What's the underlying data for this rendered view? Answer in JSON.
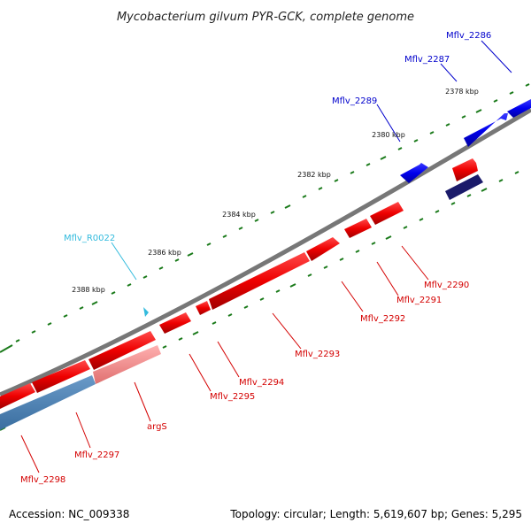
{
  "title": "Mycobacterium gilvum PYR-GCK, complete genome",
  "footer": {
    "accession": "Accession: NC_009338",
    "summary": "Topology: circular; Length: 5,619,607 bp; Genes: 5,295"
  },
  "kbp_labels": [
    "2378 kbp",
    "2380 kbp",
    "2382 kbp",
    "2384 kbp",
    "2386 kbp",
    "2388 kbp"
  ],
  "genes": {
    "mflv_2286": "Mflv_2286",
    "mflv_2287": "Mflv_2287",
    "mflv_2289": "Mflv_2289",
    "mflv_r0022": "Mflv_R0022",
    "mflv_2290": "Mflv_2290",
    "mflv_2291": "Mflv_2291",
    "mflv_2292": "Mflv_2292",
    "mflv_2293": "Mflv_2293",
    "mflv_2294": "Mflv_2294",
    "mflv_2295": "Mflv_2295",
    "args": "argS",
    "mflv_2297": "Mflv_2297",
    "mflv_2298": "Mflv_2298"
  },
  "colors": {
    "forward_gene": "#0000ee",
    "reverse_gene": "#ee0000",
    "rna_gene": "#33bbdd",
    "backbone": "#777777",
    "tick": "#1a7a1a"
  }
}
